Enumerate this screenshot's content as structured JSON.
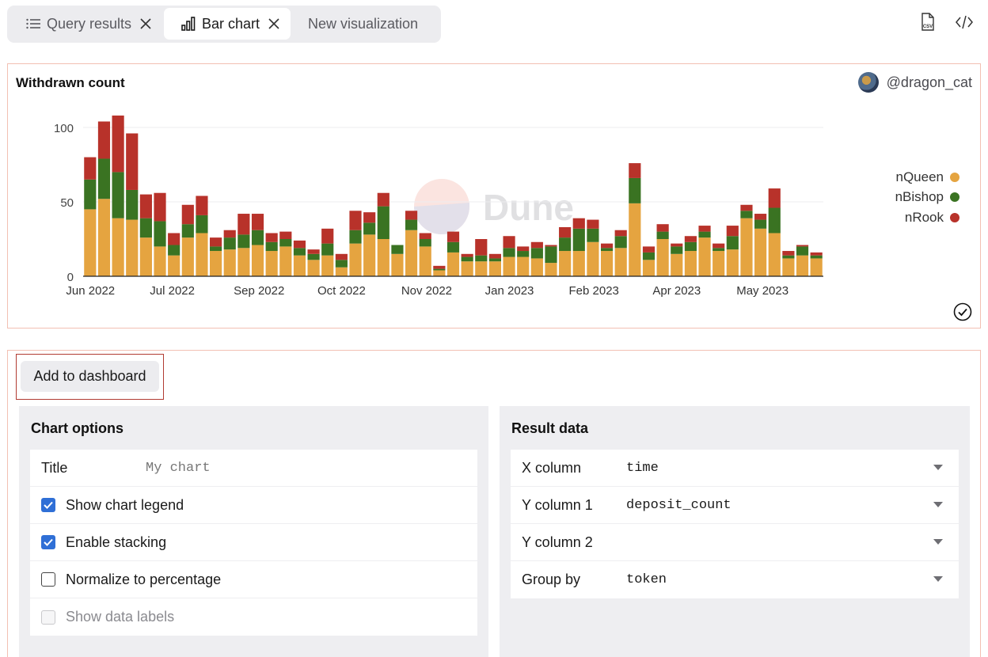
{
  "tabs": [
    {
      "label": "Query results",
      "icon": "list-icon",
      "closable": true
    },
    {
      "label": "Bar chart",
      "icon": "bar-chart-icon",
      "closable": true,
      "active": true
    },
    {
      "label": "New visualization",
      "closable": false
    }
  ],
  "toolbar": {
    "csv_icon": "csv-download-icon",
    "embed_icon": "code-embed-icon"
  },
  "chart": {
    "title": "Withdrawn count",
    "owner": "@dragon_cat",
    "watermark": "Dune",
    "legend": [
      {
        "name": "nQueen",
        "color": "#e5a440"
      },
      {
        "name": "nBishop",
        "color": "#3a7322"
      },
      {
        "name": "nRook",
        "color": "#b8322a"
      }
    ]
  },
  "chart_data": {
    "type": "bar",
    "stacked": true,
    "title": "Withdrawn count",
    "ylim": [
      0,
      110
    ],
    "yticks": [
      0,
      50,
      100
    ],
    "xtick_labels": [
      "Jun 2022",
      "Jul 2022",
      "Sep 2022",
      "Oct 2022",
      "Nov 2022",
      "Jan 2023",
      "Feb 2023",
      "Apr 2023",
      "May 2023"
    ],
    "xtick_bar_index": [
      0,
      6,
      12,
      18,
      24,
      30,
      36,
      42,
      48
    ],
    "grid": true,
    "legend_position": "right",
    "series": [
      {
        "name": "nQueen",
        "color": "#e5a440",
        "values": [
          45,
          52,
          39,
          38,
          26,
          20,
          14,
          26,
          29,
          17,
          18,
          19,
          21,
          17,
          20,
          14,
          11,
          14,
          6,
          22,
          28,
          25,
          15,
          31,
          20,
          4,
          16,
          10,
          10,
          10,
          13,
          13,
          12,
          9,
          17,
          17,
          23,
          17,
          19,
          49,
          11,
          25,
          15,
          17,
          26,
          17,
          18,
          39,
          32,
          29,
          12,
          14,
          12
        ]
      },
      {
        "name": "nBishop",
        "color": "#3a7322",
        "values": [
          20,
          27,
          31,
          20,
          13,
          17,
          7,
          9,
          12,
          3,
          8,
          9,
          10,
          6,
          5,
          5,
          4,
          8,
          5,
          9,
          8,
          22,
          6,
          7,
          5,
          1,
          7,
          3,
          4,
          2,
          6,
          4,
          7,
          11,
          9,
          15,
          9,
          2,
          8,
          17,
          5,
          5,
          5,
          6,
          4,
          2,
          9,
          5,
          6,
          17,
          2,
          6,
          2
        ]
      },
      {
        "name": "nRook",
        "color": "#b8322a",
        "values": [
          15,
          25,
          38,
          38,
          16,
          19,
          8,
          13,
          13,
          6,
          5,
          14,
          11,
          6,
          5,
          5,
          3,
          10,
          4,
          13,
          7,
          9,
          0,
          6,
          4,
          2,
          7,
          2,
          11,
          3,
          8,
          3,
          4,
          1,
          7,
          7,
          6,
          3,
          4,
          10,
          4,
          5,
          2,
          4,
          4,
          3,
          7,
          4,
          4,
          13,
          3,
          1,
          2
        ]
      }
    ]
  },
  "add_button": {
    "label": "Add to dashboard"
  },
  "chart_options": {
    "heading": "Chart options",
    "title_label": "Title",
    "title_placeholder": "My chart",
    "show_legend": {
      "label": "Show chart legend",
      "checked": true
    },
    "enable_stacking": {
      "label": "Enable stacking",
      "checked": true
    },
    "normalize": {
      "label": "Normalize to percentage",
      "checked": false
    },
    "show_labels": {
      "label": "Show data labels",
      "checked": false,
      "disabled": true
    }
  },
  "result_data": {
    "heading": "Result data",
    "rows": [
      {
        "label": "X column",
        "value": "time"
      },
      {
        "label": "Y column 1",
        "value": "deposit_count"
      },
      {
        "label": "Y column 2",
        "value": ""
      },
      {
        "label": "Group by",
        "value": "token"
      }
    ]
  }
}
